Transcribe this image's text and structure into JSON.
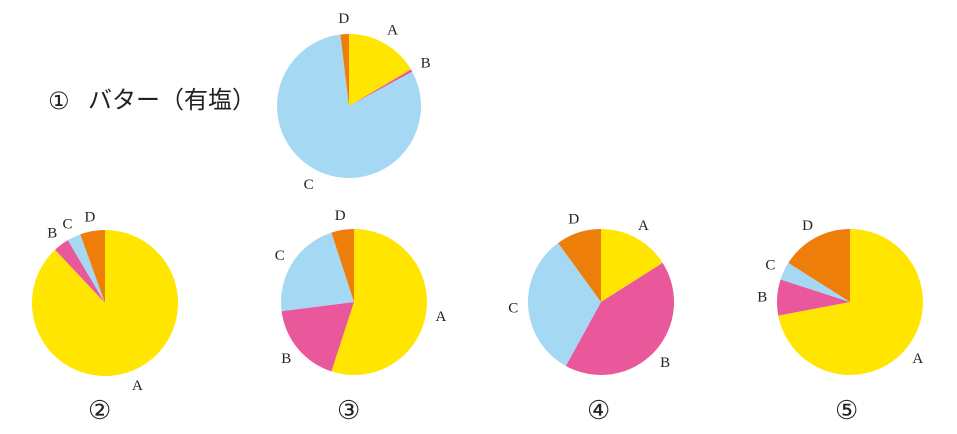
{
  "colors": {
    "A": "#FFE500",
    "B": "#E9589B",
    "C": "#A5D8F3",
    "D": "#EE7E0A"
  },
  "chart_data": [
    {
      "type": "pie",
      "label": "①",
      "title": "バター（有塩）",
      "slices": [
        {
          "name": "A",
          "value": 16.5
        },
        {
          "name": "B",
          "value": 0.6
        },
        {
          "name": "C",
          "value": 81
        },
        {
          "name": "D",
          "value": 1.9
        }
      ]
    },
    {
      "type": "pie",
      "label": "②",
      "slices": [
        {
          "name": "A",
          "value": 88
        },
        {
          "name": "B",
          "value": 3.5
        },
        {
          "name": "C",
          "value": 3
        },
        {
          "name": "D",
          "value": 5.5
        }
      ]
    },
    {
      "type": "pie",
      "label": "③",
      "slices": [
        {
          "name": "A",
          "value": 55
        },
        {
          "name": "B",
          "value": 18
        },
        {
          "name": "C",
          "value": 22
        },
        {
          "name": "D",
          "value": 5
        }
      ]
    },
    {
      "type": "pie",
      "label": "④",
      "slices": [
        {
          "name": "A",
          "value": 16
        },
        {
          "name": "B",
          "value": 42
        },
        {
          "name": "C",
          "value": 32
        },
        {
          "name": "D",
          "value": 10
        }
      ]
    },
    {
      "type": "pie",
      "label": "⑤",
      "slices": [
        {
          "name": "A",
          "value": 72
        },
        {
          "name": "B",
          "value": 8
        },
        {
          "name": "C",
          "value": 4
        },
        {
          "name": "D",
          "value": 16
        }
      ]
    }
  ]
}
